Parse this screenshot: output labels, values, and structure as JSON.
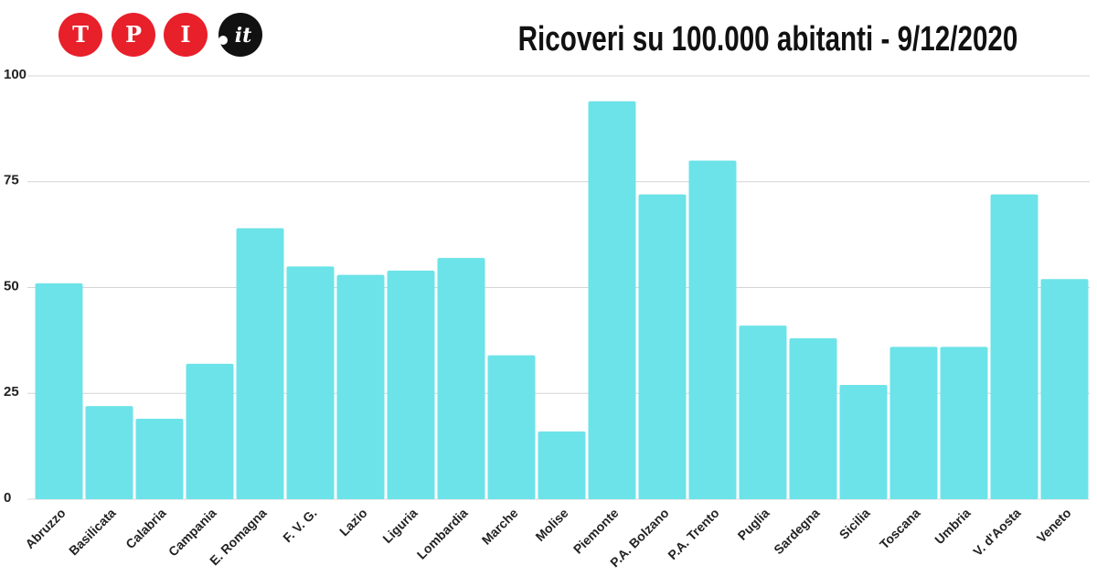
{
  "logo": {
    "letters": [
      "T",
      "P",
      "I"
    ],
    "suffix": "it"
  },
  "chart_data": {
    "type": "bar",
    "title": "Ricoveri su 100.000 abitanti - 9/12/2020",
    "categories": [
      "Abruzzo",
      "Basilicata",
      "Calabria",
      "Campania",
      "E. Romagna",
      "F. V. G.",
      "Lazio",
      "Liguria",
      "Lombardia",
      "Marche",
      "Molise",
      "Piemonte",
      "P.A. Bolzano",
      "P.A. Trento",
      "Puglia",
      "Sardegna",
      "Sicilia",
      "Toscana",
      "Umbria",
      "V. d'Aosta",
      "Veneto"
    ],
    "values": [
      51,
      22,
      19,
      32,
      64,
      55,
      53,
      54,
      57,
      34,
      16,
      94,
      72,
      80,
      41,
      38,
      27,
      36,
      36,
      72,
      52
    ],
    "color": "#6ce3e8",
    "ylim": [
      0,
      100
    ],
    "yticks": [
      0,
      25,
      50,
      75,
      100
    ],
    "grid": true
  }
}
